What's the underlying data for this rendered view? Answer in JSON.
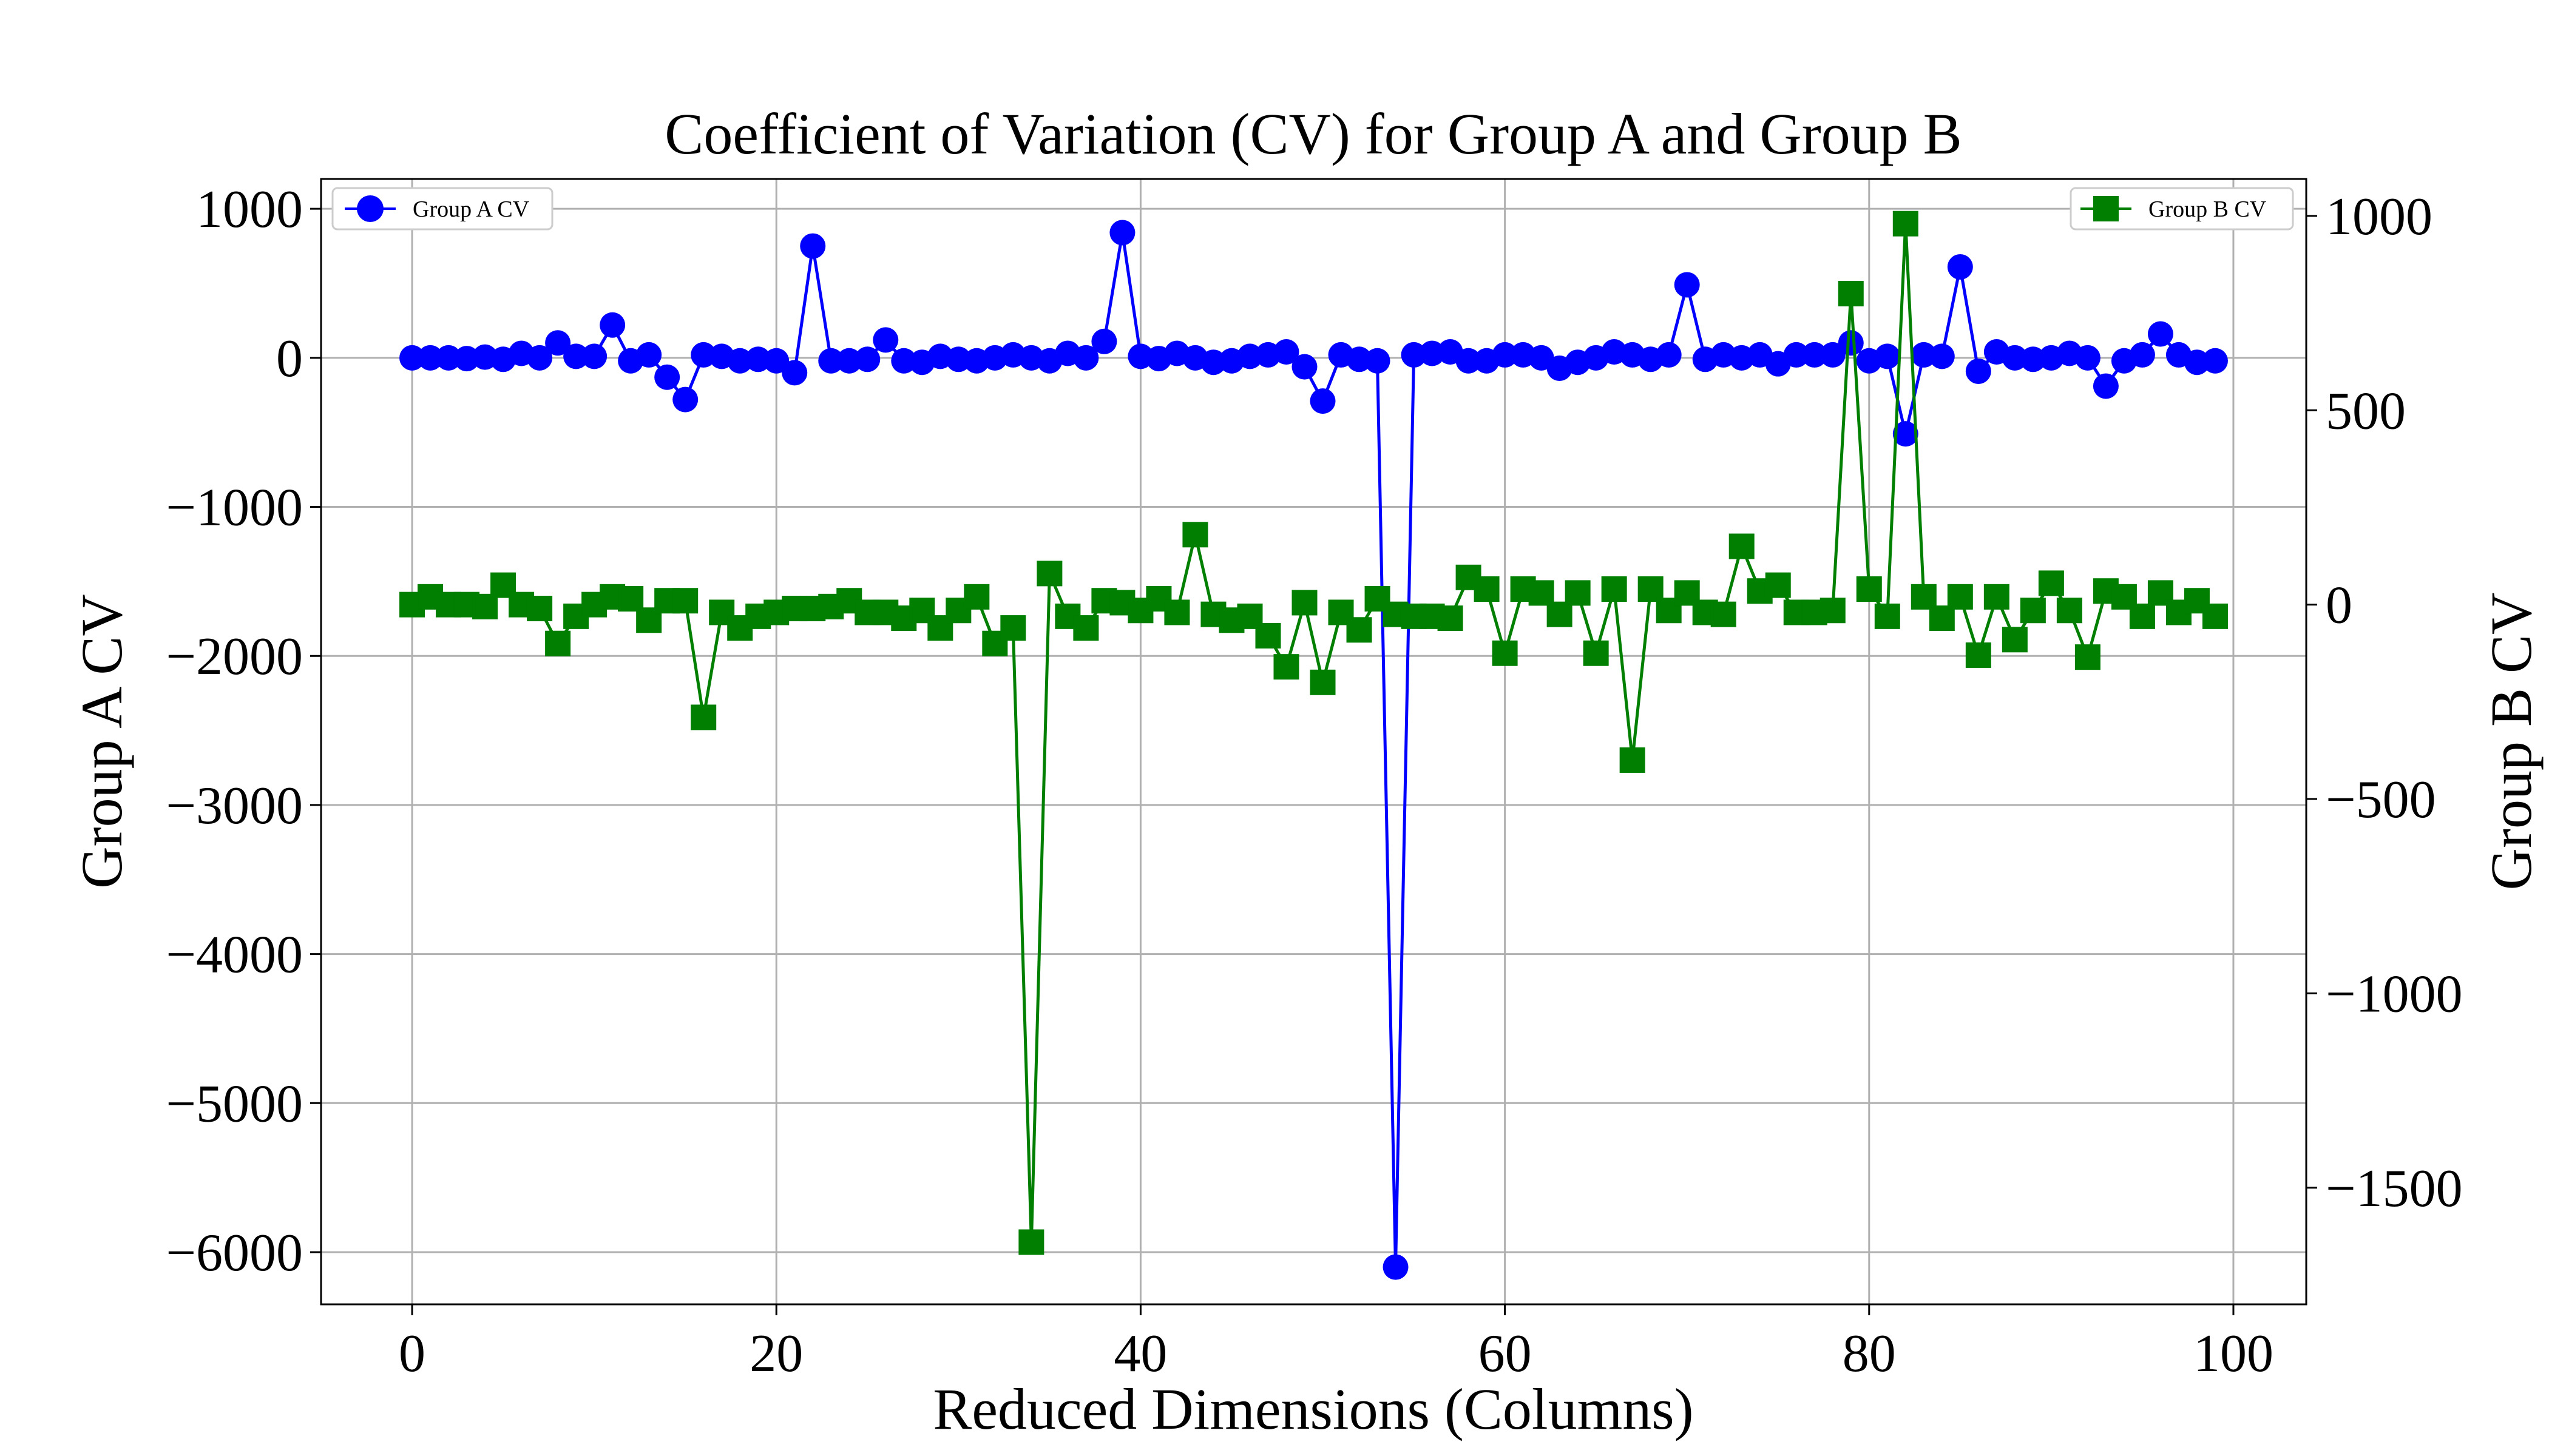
{
  "chart_data": {
    "type": "line",
    "title": "Coefficient of Variation (CV) for Group A and Group B",
    "xlabel": "Reduced Dimensions (Columns)",
    "ylabel_left": "Group A CV",
    "ylabel_right": "Group B CV",
    "xlim": [
      -5,
      104
    ],
    "ylim_left": [
      -6350,
      1200
    ],
    "ylim_right": [
      -1800,
      1095
    ],
    "x_ticks": [
      0,
      20,
      40,
      60,
      80,
      100
    ],
    "y_ticks_left": [
      1000,
      0,
      -1000,
      -2000,
      -3000,
      -4000,
      -5000,
      -6000
    ],
    "y_ticks_right": [
      1000,
      500,
      0,
      -500,
      -1000,
      -1500
    ],
    "grid": true,
    "legend_left": {
      "label": "Group A CV",
      "placement": "top-left"
    },
    "legend_right": {
      "label": "Group B CV",
      "placement": "top-right"
    },
    "series": [
      {
        "name": "Group A CV",
        "axis": "left",
        "color": "#0000ff",
        "marker": "circle",
        "values": [
          0,
          0,
          0,
          -5,
          5,
          -10,
          30,
          0,
          100,
          10,
          10,
          220,
          -20,
          20,
          -130,
          -280,
          20,
          10,
          -20,
          -10,
          -20,
          -100,
          750,
          -20,
          -20,
          -10,
          120,
          -20,
          -30,
          10,
          -10,
          -20,
          0,
          20,
          0,
          -20,
          30,
          0,
          110,
          840,
          10,
          -5,
          30,
          0,
          -30,
          -20,
          10,
          20,
          40,
          -60,
          -290,
          20,
          -10,
          -20,
          -6100,
          20,
          30,
          40,
          -20,
          -20,
          20,
          20,
          0,
          -70,
          -30,
          0,
          40,
          20,
          -10,
          20,
          490,
          -10,
          20,
          0,
          20,
          -40,
          20,
          20,
          20,
          100,
          -20,
          10,
          -510,
          20,
          10,
          610,
          -90,
          40,
          0,
          -10,
          0,
          30,
          0,
          -190,
          -20,
          20,
          160,
          20,
          -30,
          -20
        ]
      },
      {
        "name": "Group B CV",
        "axis": "right",
        "color": "#007f00",
        "marker": "square",
        "values": [
          0,
          20,
          0,
          0,
          -5,
          50,
          0,
          -10,
          -100,
          -30,
          0,
          20,
          15,
          -40,
          10,
          10,
          -290,
          -20,
          -60,
          -30,
          -20,
          -10,
          -10,
          -5,
          10,
          -20,
          -20,
          -35,
          -15,
          -60,
          -15,
          20,
          -100,
          -60,
          -1640,
          80,
          -30,
          -60,
          10,
          5,
          -15,
          15,
          -20,
          180,
          -25,
          -40,
          -30,
          -80,
          -160,
          5,
          -200,
          -20,
          -65,
          15,
          -25,
          -30,
          -30,
          -35,
          70,
          40,
          -125,
          40,
          30,
          -25,
          30,
          -125,
          40,
          -400,
          40,
          -15,
          30,
          -20,
          -25,
          150,
          35,
          50,
          -20,
          -20,
          -15,
          800,
          40,
          -30,
          980,
          20,
          -35,
          20,
          -130,
          20,
          -90,
          -15,
          55,
          -15,
          -135,
          35,
          20,
          -30,
          30,
          -20,
          10,
          -30
        ]
      }
    ]
  }
}
